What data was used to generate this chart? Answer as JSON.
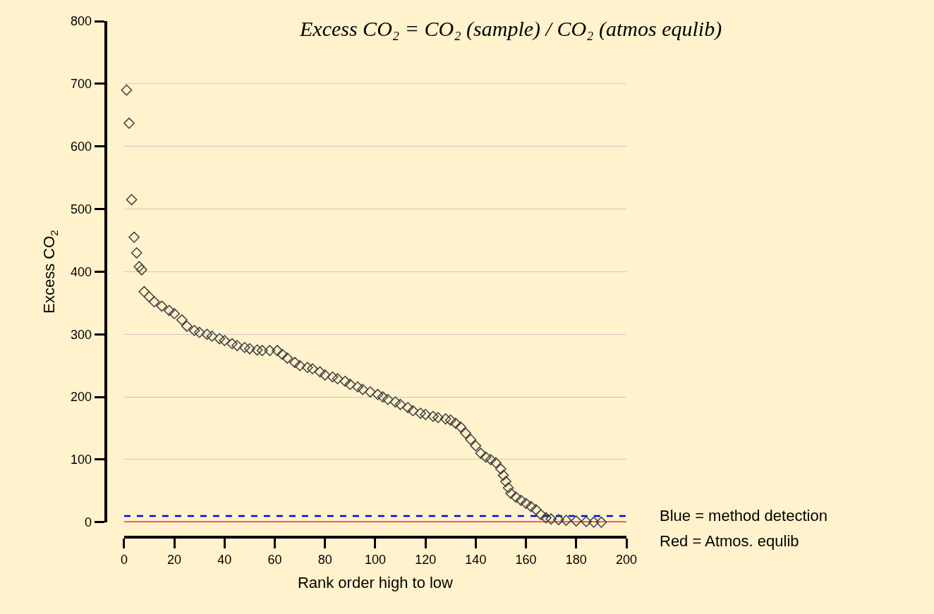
{
  "chart_data": {
    "type": "scatter",
    "xlabel": "Rank order high to low",
    "ylabel": "Excess CO$_{2}$",
    "annotations": [
      "Excess CO₂ = CO₂ (sample) / CO₂ (atmos equlib)"
    ],
    "series": [
      {
        "color": "#404040",
        "x": [
          1,
          2,
          3,
          4,
          5,
          6,
          7,
          8,
          10,
          12,
          15,
          18,
          20,
          23,
          25,
          28,
          30,
          33,
          35,
          38,
          40,
          43,
          45,
          48,
          50,
          53,
          55,
          58,
          61,
          63,
          65,
          68,
          70,
          73,
          75,
          78,
          80,
          83,
          85,
          88,
          90,
          93,
          95,
          98,
          101,
          103,
          105,
          108,
          110,
          113,
          115,
          118,
          120,
          123,
          125,
          128,
          130,
          132,
          134,
          136,
          138,
          140,
          142,
          144,
          146,
          148,
          150,
          151,
          152,
          153,
          154,
          156,
          158,
          160,
          162,
          164,
          166,
          168,
          170,
          173,
          176,
          180,
          184,
          187,
          190
        ],
        "values": [
          690,
          637,
          515,
          455,
          430,
          408,
          403,
          368,
          360,
          352,
          345,
          338,
          333,
          323,
          313,
          306,
          303,
          300,
          297,
          293,
          290,
          285,
          282,
          279,
          277,
          275,
          274,
          274,
          274,
          268,
          262,
          255,
          250,
          247,
          245,
          240,
          235,
          232,
          229,
          225,
          220,
          216,
          212,
          208,
          204,
          200,
          196,
          192,
          188,
          183,
          178,
          174,
          172,
          169,
          167,
          165,
          163,
          158,
          152,
          142,
          132,
          122,
          110,
          104,
          100,
          95,
          85,
          75,
          65,
          55,
          46,
          40,
          35,
          30,
          25,
          20,
          12,
          7,
          5,
          4,
          3,
          2,
          1,
          0,
          0
        ]
      }
    ],
    "marker": "diamond",
    "xlim": [
      0,
      200
    ],
    "xticks": [
      0,
      20,
      40,
      60,
      80,
      100,
      120,
      140,
      160,
      180,
      200
    ],
    "ylim": [
      0,
      800
    ],
    "yticks": [
      0,
      100,
      200,
      300,
      400,
      500,
      600,
      700,
      800
    ],
    "grid": "y",
    "ref_lines": [
      {
        "axis": "y",
        "value": 10,
        "label": "Blue = method detection",
        "color": "#0000ff",
        "line_style": "dashed"
      },
      {
        "axis": "y",
        "value": 0,
        "label": "Red = Atmos. equlib",
        "color": "#ff0000",
        "line_style": "solid"
      }
    ]
  }
}
